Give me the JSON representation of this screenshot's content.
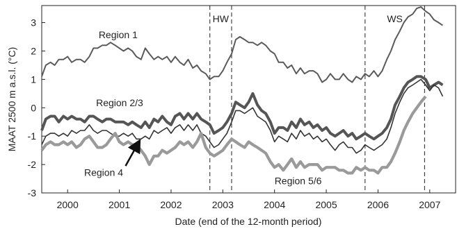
{
  "chart_data": {
    "type": "line",
    "title": "",
    "xlabel": "Date (end of the 12-month period)",
    "ylabel": "MAAT 2500 m a.s.l. (°C)",
    "x_unit": "decimal year",
    "xlim": [
      1999.5,
      2007.5
    ],
    "ylim": [
      -3,
      3.6
    ],
    "yticks": [
      3,
      2,
      1,
      0,
      -1,
      -2,
      -3
    ],
    "xtick_labels": [
      "2000",
      "2001",
      "2002",
      "2003",
      "2004",
      "2005",
      "2006",
      "2007"
    ],
    "grid": false,
    "legend": "none",
    "periods": [
      {
        "label": "HW",
        "start": 2002.75,
        "end": 2003.17
      },
      {
        "label": "WS",
        "start": 2005.75,
        "end": 2006.9
      }
    ],
    "series": [
      {
        "name": "Region 1",
        "color": "#5a5a5a",
        "x": [
          1999.5,
          1999.58,
          1999.67,
          1999.75,
          1999.83,
          1999.92,
          2000.0,
          2000.08,
          2000.17,
          2000.25,
          2000.33,
          2000.42,
          2000.5,
          2000.58,
          2000.67,
          2000.75,
          2000.83,
          2000.92,
          2001.0,
          2001.08,
          2001.17,
          2001.25,
          2001.33,
          2001.42,
          2001.5,
          2001.58,
          2001.67,
          2001.75,
          2001.83,
          2001.92,
          2002.0,
          2002.08,
          2002.17,
          2002.25,
          2002.33,
          2002.42,
          2002.5,
          2002.58,
          2002.67,
          2002.75,
          2002.83,
          2002.92,
          2003.0,
          2003.08,
          2003.17,
          2003.25,
          2003.33,
          2003.42,
          2003.5,
          2003.58,
          2003.67,
          2003.75,
          2003.83,
          2003.92,
          2004.0,
          2004.08,
          2004.17,
          2004.25,
          2004.33,
          2004.42,
          2004.5,
          2004.58,
          2004.67,
          2004.75,
          2004.83,
          2004.92,
          2005.0,
          2005.08,
          2005.17,
          2005.25,
          2005.33,
          2005.42,
          2005.5,
          2005.58,
          2005.67,
          2005.75,
          2005.83,
          2005.92,
          2006.0,
          2006.08,
          2006.17,
          2006.25,
          2006.33,
          2006.42,
          2006.5,
          2006.58,
          2006.67,
          2006.75,
          2006.83,
          2006.92,
          2007.0,
          2007.08,
          2007.17,
          2007.25
        ],
        "y": [
          1.1,
          1.5,
          1.6,
          1.5,
          1.7,
          1.7,
          1.8,
          1.6,
          1.7,
          1.7,
          1.6,
          1.8,
          2.1,
          2.1,
          2.2,
          2.2,
          2.3,
          2.2,
          2.1,
          2.0,
          2.1,
          2.0,
          1.8,
          1.7,
          2.1,
          1.9,
          1.7,
          1.8,
          1.7,
          1.8,
          1.6,
          1.8,
          1.6,
          1.5,
          1.7,
          1.4,
          1.5,
          1.3,
          1.2,
          1.0,
          1.1,
          1.1,
          1.3,
          1.6,
          1.9,
          2.4,
          2.5,
          2.4,
          2.3,
          2.3,
          2.2,
          2.3,
          2.2,
          2.0,
          1.9,
          1.6,
          1.6,
          1.4,
          1.5,
          1.2,
          1.4,
          1.2,
          1.3,
          1.3,
          1.2,
          0.9,
          1.0,
          1.2,
          1.0,
          1.0,
          1.2,
          1.0,
          0.9,
          1.1,
          1.0,
          1.2,
          1.1,
          1.3,
          1.1,
          1.3,
          1.7,
          2.0,
          2.4,
          2.7,
          3.0,
          3.2,
          3.3,
          3.5,
          3.55,
          3.4,
          3.3,
          3.1,
          3.0,
          2.9
        ]
      },
      {
        "name": "Region 2/3",
        "color": "#555555",
        "x": [
          1999.5,
          1999.58,
          1999.67,
          1999.75,
          1999.83,
          1999.92,
          2000.0,
          2000.08,
          2000.17,
          2000.25,
          2000.33,
          2000.42,
          2000.5,
          2000.58,
          2000.67,
          2000.75,
          2000.83,
          2000.92,
          2001.0,
          2001.08,
          2001.17,
          2001.25,
          2001.33,
          2001.42,
          2001.5,
          2001.58,
          2001.67,
          2001.75,
          2001.83,
          2001.92,
          2002.0,
          2002.08,
          2002.17,
          2002.25,
          2002.33,
          2002.42,
          2002.5,
          2002.58,
          2002.67,
          2002.75,
          2002.83,
          2002.92,
          2003.0,
          2003.08,
          2003.17,
          2003.25,
          2003.33,
          2003.42,
          2003.5,
          2003.58,
          2003.67,
          2003.75,
          2003.83,
          2003.92,
          2004.0,
          2004.08,
          2004.17,
          2004.25,
          2004.33,
          2004.42,
          2004.5,
          2004.58,
          2004.67,
          2004.75,
          2004.83,
          2004.92,
          2005.0,
          2005.08,
          2005.17,
          2005.25,
          2005.33,
          2005.42,
          2005.5,
          2005.58,
          2005.67,
          2005.75,
          2005.83,
          2005.92,
          2006.0,
          2006.08,
          2006.17,
          2006.25,
          2006.33,
          2006.42,
          2006.5,
          2006.58,
          2006.67,
          2006.75,
          2006.83,
          2006.92,
          2007.0,
          2007.08,
          2007.17,
          2007.25
        ],
        "y": [
          -0.8,
          -0.4,
          -0.3,
          -0.3,
          -0.5,
          -0.3,
          -0.4,
          -0.3,
          -0.4,
          -0.4,
          -0.5,
          -0.3,
          -0.3,
          -0.4,
          -0.5,
          -0.4,
          -0.4,
          -0.5,
          -0.5,
          -0.5,
          -0.6,
          -0.5,
          -0.6,
          -0.7,
          -0.5,
          -0.7,
          -0.4,
          -0.5,
          -0.3,
          -0.5,
          -0.6,
          -0.3,
          -0.2,
          -0.4,
          -0.2,
          -0.4,
          -0.2,
          -0.4,
          -0.5,
          -0.6,
          -0.9,
          -0.8,
          -0.7,
          -0.5,
          -0.2,
          0.2,
          0.1,
          0.0,
          0.2,
          0.5,
          0.1,
          -0.1,
          -0.2,
          -0.5,
          -0.9,
          -0.7,
          -0.7,
          -0.8,
          -0.5,
          -0.7,
          -0.4,
          -0.6,
          -0.5,
          -0.7,
          -0.6,
          -0.8,
          -0.7,
          -0.9,
          -1.0,
          -0.9,
          -0.8,
          -1.0,
          -0.9,
          -1.1,
          -1.0,
          -0.9,
          -1.0,
          -1.1,
          -1.0,
          -0.9,
          -0.7,
          -0.4,
          0.1,
          0.4,
          0.7,
          0.9,
          1.0,
          1.1,
          1.1,
          1.0,
          0.7,
          0.8,
          0.9,
          0.8
        ]
      },
      {
        "name": "Region 4",
        "color": "#333333",
        "x": [
          1999.5,
          1999.58,
          1999.67,
          1999.75,
          1999.83,
          1999.92,
          2000.0,
          2000.08,
          2000.17,
          2000.25,
          2000.33,
          2000.42,
          2000.5,
          2000.58,
          2000.67,
          2000.75,
          2000.83,
          2000.92,
          2001.0,
          2001.08,
          2001.17,
          2001.25,
          2001.33,
          2001.42,
          2001.5,
          2001.58,
          2001.67,
          2001.75,
          2001.83,
          2001.92,
          2002.0,
          2002.08,
          2002.17,
          2002.25,
          2002.33,
          2002.42,
          2002.5,
          2002.58,
          2002.67,
          2002.75,
          2002.83,
          2002.92,
          2003.0,
          2003.08,
          2003.17,
          2003.25,
          2003.33,
          2003.42,
          2003.5,
          2003.58,
          2003.67,
          2003.75,
          2003.83,
          2003.92,
          2004.0,
          2004.08,
          2004.17,
          2004.25,
          2004.33,
          2004.42,
          2004.5,
          2004.58,
          2004.67,
          2004.75,
          2004.83,
          2004.92,
          2005.0,
          2005.08,
          2005.17,
          2005.25,
          2005.33,
          2005.42,
          2005.5,
          2005.58,
          2005.67,
          2005.75,
          2005.83,
          2005.92,
          2006.0,
          2006.08,
          2006.17,
          2006.25,
          2006.33,
          2006.42,
          2006.5,
          2006.58,
          2006.67,
          2006.75,
          2006.83,
          2006.92,
          2007.0,
          2007.08,
          2007.17,
          2007.25
        ],
        "y": [
          -1.3,
          -1.0,
          -0.9,
          -0.9,
          -1.0,
          -0.9,
          -1.0,
          -0.8,
          -0.9,
          -0.8,
          -0.8,
          -0.6,
          -0.8,
          -0.9,
          -0.8,
          -0.8,
          -0.9,
          -1.0,
          -1.0,
          -0.9,
          -1.0,
          -0.9,
          -1.1,
          -1.1,
          -1.0,
          -1.1,
          -0.8,
          -0.9,
          -0.8,
          -0.7,
          -0.9,
          -0.7,
          -0.6,
          -0.8,
          -0.6,
          -0.8,
          -0.6,
          -0.9,
          -1.0,
          -1.2,
          -1.4,
          -1.3,
          -1.1,
          -0.9,
          -0.5,
          -0.1,
          -0.1,
          -0.2,
          -0.1,
          0.0,
          -0.3,
          -0.4,
          -0.5,
          -0.8,
          -1.2,
          -1.0,
          -1.1,
          -1.2,
          -0.9,
          -1.1,
          -0.8,
          -1.0,
          -0.9,
          -1.1,
          -1.0,
          -1.2,
          -1.1,
          -1.3,
          -1.5,
          -1.3,
          -1.2,
          -1.4,
          -1.4,
          -1.6,
          -1.5,
          -1.3,
          -1.4,
          -1.5,
          -1.4,
          -1.3,
          -1.1,
          -0.7,
          -0.2,
          0.2,
          0.5,
          0.7,
          0.8,
          0.9,
          1.0,
          0.8,
          0.6,
          0.8,
          0.7,
          0.4
        ]
      },
      {
        "name": "Region 5/6",
        "color": "#9a9a9a",
        "x": [
          1999.5,
          1999.58,
          1999.67,
          1999.75,
          1999.83,
          1999.92,
          2000.0,
          2000.08,
          2000.17,
          2000.25,
          2000.33,
          2000.42,
          2000.5,
          2000.58,
          2000.67,
          2000.75,
          2000.83,
          2000.92,
          2001.0,
          2001.08,
          2001.17,
          2001.25,
          2001.33,
          2001.42,
          2001.5,
          2001.58,
          2001.67,
          2001.75,
          2001.83,
          2001.92,
          2002.0,
          2002.08,
          2002.17,
          2002.25,
          2002.33,
          2002.42,
          2002.5,
          2002.58,
          2002.67,
          2002.75,
          2002.83,
          2002.92,
          2003.0,
          2003.08,
          2003.17,
          2003.25,
          2003.33,
          2003.42,
          2003.5,
          2003.58,
          2003.67,
          2003.75,
          2003.83,
          2003.92,
          2004.0,
          2004.08,
          2004.17,
          2004.25,
          2004.33,
          2004.42,
          2004.5,
          2004.58,
          2004.67,
          2004.75,
          2004.83,
          2004.92,
          2005.0,
          2005.08,
          2005.17,
          2005.25,
          2005.33,
          2005.42,
          2005.5,
          2005.58,
          2005.67,
          2005.75,
          2005.83,
          2005.92,
          2006.0,
          2006.08,
          2006.17,
          2006.25,
          2006.33,
          2006.42,
          2006.5,
          2006.58,
          2006.67,
          2006.75,
          2006.83,
          2006.92
        ],
        "y": [
          -1.5,
          -1.3,
          -1.2,
          -1.3,
          -1.3,
          -1.2,
          -1.3,
          -1.2,
          -1.4,
          -1.3,
          -1.1,
          -1.0,
          -1.2,
          -1.4,
          -1.4,
          -1.3,
          -1.1,
          -0.9,
          -1.2,
          -1.3,
          -1.2,
          -1.3,
          -1.3,
          -1.5,
          -1.7,
          -2.0,
          -1.7,
          -1.7,
          -1.5,
          -1.6,
          -1.5,
          -1.4,
          -1.2,
          -1.3,
          -1.2,
          -1.4,
          -1.2,
          -0.9,
          -1.4,
          -1.6,
          -1.7,
          -1.6,
          -1.5,
          -1.3,
          -1.1,
          -1.2,
          -1.3,
          -1.4,
          -1.2,
          -1.3,
          -1.4,
          -1.5,
          -1.6,
          -1.9,
          -2.1,
          -2.0,
          -2.2,
          -2.0,
          -1.8,
          -2.1,
          -1.9,
          -2.1,
          -2.0,
          -2.0,
          -2.0,
          -2.2,
          -2.1,
          -2.1,
          -2.1,
          -2.2,
          -2.2,
          -2.3,
          -2.3,
          -2.1,
          -2.2,
          -2.1,
          -2.2,
          -2.2,
          -2.3,
          -2.1,
          -2.1,
          -1.9,
          -1.6,
          -1.2,
          -0.8,
          -0.5,
          -0.2,
          0.0,
          0.2,
          0.4
        ]
      }
    ],
    "annotations": [
      {
        "text": "Region 1",
        "series": "Region 1"
      },
      {
        "text": "Region 2/3",
        "series": "Region 2/3"
      },
      {
        "text": "Region 4",
        "series": "Region 4",
        "arrow": true
      },
      {
        "text": "Region 5/6",
        "series": "Region 5/6"
      }
    ]
  }
}
